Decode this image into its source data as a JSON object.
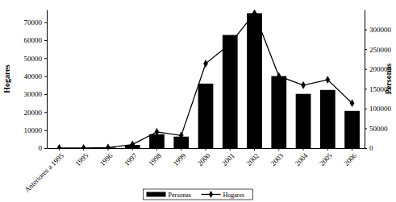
{
  "chart_data": {
    "type": "bar",
    "ylabel": "Hogares",
    "y2label": "Personas",
    "categories": [
      "Anteriores a 1995",
      "1995",
      "1996",
      "1997",
      "1998",
      "1999",
      "2000",
      "2001",
      "2002",
      "2003",
      "2004",
      "2005",
      "2006"
    ],
    "series": [
      {
        "name": "Personas",
        "type": "bar",
        "axis": "y2",
        "color": "#000000",
        "values": [
          0,
          0,
          1500,
          8000,
          35000,
          29000,
          163000,
          286000,
          341000,
          182000,
          137000,
          147000,
          94000
        ]
      },
      {
        "name": "Hogares",
        "type": "line",
        "marker": "diamond",
        "color": "#000000",
        "values": [
          0,
          0,
          300,
          2000,
          9000,
          7000,
          47000,
          58000,
          75000,
          40000,
          35000,
          38000,
          25000
        ]
      }
    ],
    "ylim": [
      0,
      77000
    ],
    "yticks": [
      0,
      10000,
      20000,
      30000,
      40000,
      50000,
      60000,
      70000
    ],
    "y2lim": [
      0,
      350000
    ],
    "y2ticks": [
      0,
      50000,
      100000,
      150000,
      200000,
      250000,
      300000
    ],
    "grid": false,
    "legend": "bottom"
  }
}
